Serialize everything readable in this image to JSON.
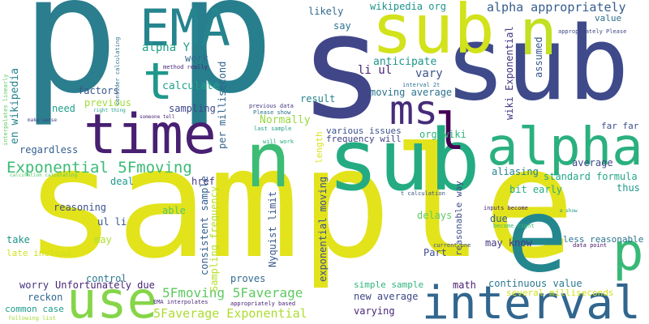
{
  "words": [
    {
      "text": "sample",
      "color": "#e2e31b",
      "orientation": "horizontal"
    },
    {
      "text": "p",
      "color": "#2b7e8e",
      "orientation": "horizontal"
    },
    {
      "text": "p",
      "color": "#277f8e",
      "orientation": "horizontal"
    },
    {
      "text": "s",
      "color": "#404688",
      "orientation": "horizontal"
    },
    {
      "text": "sub",
      "color": "#3e4a89",
      "orientation": "horizontal"
    },
    {
      "text": "sub",
      "color": "#d2e21b",
      "orientation": "horizontal"
    },
    {
      "text": "sub",
      "color": "#25ab82",
      "orientation": "horizontal"
    },
    {
      "text": "time",
      "color": "#481f71",
      "orientation": "horizontal"
    },
    {
      "text": "interval",
      "color": "#31668e",
      "orientation": "horizontal"
    },
    {
      "text": "alpha",
      "color": "#2ab07f",
      "orientation": "horizontal"
    },
    {
      "text": "use",
      "color": "#86d549",
      "orientation": "horizontal"
    },
    {
      "text": "EMA",
      "color": "#25848e",
      "orientation": "horizontal"
    },
    {
      "text": "ms",
      "color": "#472c7a",
      "orientation": "horizontal"
    },
    {
      "text": "n",
      "color": "#3cbc74",
      "orientation": "horizontal"
    },
    {
      "text": "n",
      "color": "#c2df23",
      "orientation": "horizontal"
    },
    {
      "text": "p",
      "color": "#39b977",
      "orientation": "horizontal"
    },
    {
      "text": "t",
      "color": "#1f988b",
      "orientation": "horizontal"
    },
    {
      "text": "l",
      "color": "#440154",
      "orientation": "horizontal"
    },
    {
      "text": "e",
      "color": "#24878e",
      "orientation": "horizontal"
    },
    {
      "text": "Exponential 5Fmoving",
      "color": "#3bbb75",
      "orientation": "horizontal"
    },
    {
      "text": "5Fmoving 5Faverage",
      "color": "#5ec962",
      "orientation": "horizontal"
    },
    {
      "text": "5Faverage Exponential",
      "color": "#addc30",
      "orientation": "horizontal"
    },
    {
      "text": "alpha Y",
      "color": "#1f9e89",
      "orientation": "horizontal"
    },
    {
      "text": "alpha appropriately",
      "color": "#365c8d",
      "orientation": "horizontal"
    },
    {
      "text": "wiki Exponential",
      "color": "#453781",
      "orientation": "vertical"
    },
    {
      "text": "moving average",
      "color": "#2c728e",
      "orientation": "horizontal"
    },
    {
      "text": "anticipate",
      "color": "#1f958b",
      "orientation": "horizontal"
    },
    {
      "text": "li ul",
      "color": "#482475",
      "orientation": "horizontal"
    },
    {
      "text": "vary",
      "color": "#3a548c",
      "orientation": "horizontal"
    },
    {
      "text": "likely",
      "color": "#31688e",
      "orientation": "horizontal"
    },
    {
      "text": "wikipedia org",
      "color": "#20928c",
      "orientation": "horizontal"
    },
    {
      "text": "say",
      "color": "#2c738e",
      "orientation": "horizontal"
    },
    {
      "text": "value",
      "color": "#2e6e8e",
      "orientation": "horizontal"
    },
    {
      "text": "assumed",
      "color": "#39568c",
      "orientation": "vertical"
    },
    {
      "text": "appropriately Please",
      "color": "#3f4788",
      "orientation": "horizontal"
    },
    {
      "text": "interval 2t",
      "color": "#2d718e",
      "orientation": "horizontal"
    },
    {
      "text": "result",
      "color": "#26828e",
      "orientation": "horizontal"
    },
    {
      "text": "work",
      "color": "#306a8e",
      "orientation": "horizontal"
    },
    {
      "text": "calculate",
      "color": "#1fa188",
      "orientation": "horizontal"
    },
    {
      "text": "factors",
      "color": "#38588c",
      "orientation": "horizontal"
    },
    {
      "text": "previous",
      "color": "#a2da37",
      "orientation": "horizontal"
    },
    {
      "text": "need",
      "color": "#1f9f88",
      "orientation": "horizontal"
    },
    {
      "text": "sampling",
      "color": "#3f4889",
      "orientation": "horizontal"
    },
    {
      "text": "per millisecond",
      "color": "#32658e",
      "orientation": "vertical"
    },
    {
      "text": "en wikipedia",
      "color": "#25838e",
      "orientation": "vertical"
    },
    {
      "text": "regardless",
      "color": "#355f8d",
      "orientation": "horizontal"
    },
    {
      "text": "Normally",
      "color": "#98d83e",
      "orientation": "horizontal"
    },
    {
      "text": "org wiki",
      "color": "#2eb37c",
      "orientation": "horizontal"
    },
    {
      "text": "far far",
      "color": "#3c4f8a",
      "orientation": "horizontal"
    },
    {
      "text": "various issues",
      "color": "#3b518b",
      "orientation": "horizontal"
    },
    {
      "text": "frequency will",
      "color": "#414487",
      "orientation": "horizontal"
    },
    {
      "text": "length",
      "color": "#d8e219",
      "orientation": "vertical"
    },
    {
      "text": "average",
      "color": "#3e4989",
      "orientation": "horizontal"
    },
    {
      "text": "aliasing",
      "color": "#26828e",
      "orientation": "horizontal"
    },
    {
      "text": "standard formula",
      "color": "#22a785",
      "orientation": "horizontal"
    },
    {
      "text": "thus",
      "color": "#1f9a8a",
      "orientation": "horizontal"
    },
    {
      "text": "bit early",
      "color": "#25ac82",
      "orientation": "horizontal"
    },
    {
      "text": "deal",
      "color": "#1f998a",
      "orientation": "horizontal"
    },
    {
      "text": "href",
      "color": "#443a83",
      "orientation": "horizontal"
    },
    {
      "text": "consistent sample",
      "color": "#34608d",
      "orientation": "vertical"
    },
    {
      "text": "Sampling frequency",
      "color": "#b5de2b",
      "orientation": "vertical"
    },
    {
      "text": "exponential moving",
      "color": "#3b518b",
      "orientation": "vertical"
    },
    {
      "text": "reasonable way",
      "color": "#3c4f8a",
      "orientation": "vertical"
    },
    {
      "text": "reasoning",
      "color": "#3b528b",
      "orientation": "horizontal"
    },
    {
      "text": "able",
      "color": "#52c569",
      "orientation": "horizontal"
    },
    {
      "text": "ul li",
      "color": "#3a548c",
      "orientation": "horizontal"
    },
    {
      "text": "delays",
      "color": "#60ca60",
      "orientation": "horizontal"
    },
    {
      "text": "due",
      "color": "#33638d",
      "orientation": "horizontal"
    },
    {
      "text": "take",
      "color": "#1f948c",
      "orientation": "horizontal"
    },
    {
      "text": "may",
      "color": "#b0dd2f",
      "orientation": "horizontal"
    },
    {
      "text": "late instead",
      "color": "#d0e11c",
      "orientation": "horizontal"
    },
    {
      "text": "Part",
      "color": "#3d4e8a",
      "orientation": "horizontal"
    },
    {
      "text": "may know",
      "color": "#443a83",
      "orientation": "horizontal"
    },
    {
      "text": "less reasonable",
      "color": "#2c738e",
      "orientation": "horizontal"
    },
    {
      "text": "Nyquist limit",
      "color": "#38588c",
      "orientation": "vertical"
    },
    {
      "text": "control",
      "color": "#2a788e",
      "orientation": "horizontal"
    },
    {
      "text": "proves",
      "color": "#306a8e",
      "orientation": "horizontal"
    },
    {
      "text": "worry",
      "color": "#46327e",
      "orientation": "horizontal"
    },
    {
      "text": "Unfortunately due",
      "color": "#482475",
      "orientation": "horizontal"
    },
    {
      "text": "reckon",
      "color": "#31688e",
      "orientation": "horizontal"
    },
    {
      "text": "common case",
      "color": "#1e9c89",
      "orientation": "horizontal"
    },
    {
      "text": "following list",
      "color": "#a5db36",
      "orientation": "horizontal"
    },
    {
      "text": "EMA interpolates",
      "color": "#482878",
      "orientation": "horizontal"
    },
    {
      "text": "appropriately based",
      "color": "#482173",
      "orientation": "horizontal"
    },
    {
      "text": "continuous value",
      "color": "#2a788e",
      "orientation": "horizontal"
    },
    {
      "text": "math",
      "color": "#482071",
      "orientation": "horizontal"
    },
    {
      "text": "several milliseconds",
      "color": "#d2e21b",
      "orientation": "horizontal"
    },
    {
      "text": "simple sample",
      "color": "#2fb47c",
      "orientation": "horizontal"
    },
    {
      "text": "new average",
      "color": "#3f4788",
      "orientation": "horizontal"
    },
    {
      "text": "varying",
      "color": "#482576",
      "orientation": "horizontal"
    },
    {
      "text": "interpolates linearly",
      "color": "#5ec962",
      "orientation": "vertical"
    },
    {
      "text": "consider calculating",
      "color": "#2d708e",
      "orientation": "vertical"
    },
    {
      "text": "method really",
      "color": "#482475",
      "orientation": "horizontal"
    },
    {
      "text": "right thing",
      "color": "#1f9e89",
      "orientation": "horizontal"
    },
    {
      "text": "someone tell",
      "color": "#482878",
      "orientation": "horizontal"
    },
    {
      "text": "make sense",
      "color": "#414487",
      "orientation": "horizontal"
    },
    {
      "text": "calculation calculating",
      "color": "#54c568",
      "orientation": "horizontal"
    },
    {
      "text": "previous data",
      "color": "#46337f",
      "orientation": "horizontal"
    },
    {
      "text": "Please show",
      "color": "#2c728e",
      "orientation": "horizontal"
    },
    {
      "text": "last sample",
      "color": "#1fa188",
      "orientation": "horizontal"
    },
    {
      "text": "will work",
      "color": "#26ad81",
      "orientation": "horizontal"
    },
    {
      "text": "t calculation",
      "color": "#3b528b",
      "orientation": "horizontal"
    },
    {
      "text": "inputs become",
      "color": "#482173",
      "orientation": "horizontal"
    },
    {
      "text": "become right",
      "color": "#3bbb75",
      "orientation": "horizontal"
    },
    {
      "text": "e show",
      "color": "#1f958b",
      "orientation": "horizontal"
    },
    {
      "text": "current one",
      "color": "#3e4a89",
      "orientation": "horizontal"
    },
    {
      "text": "data point",
      "color": "#471063",
      "orientation": "horizontal"
    }
  ]
}
